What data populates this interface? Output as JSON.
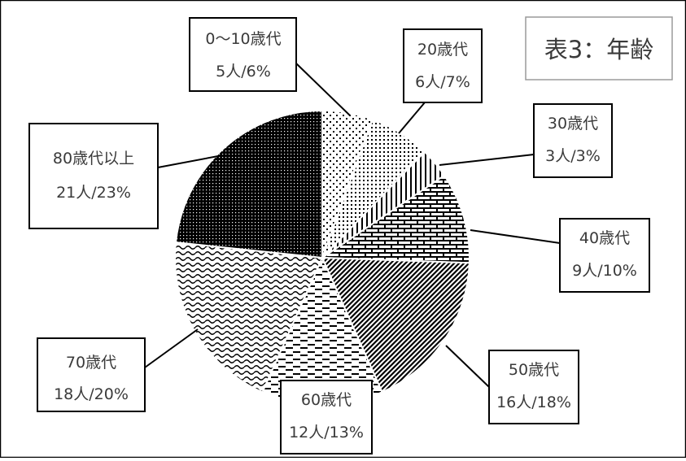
{
  "chart_data": {
    "type": "pie",
    "title": "表3：年齢",
    "slices": [
      {
        "label": "0〜10歳代",
        "count": "5人",
        "percent": "6%",
        "value": 5,
        "pct": 6,
        "pattern": "dots-sparse"
      },
      {
        "label": "20歳代",
        "count": "6人",
        "percent": "7%",
        "value": 6,
        "pct": 7,
        "pattern": "dots-medium"
      },
      {
        "label": "30歳代",
        "count": "3人",
        "percent": "3%",
        "value": 3,
        "pct": 3,
        "pattern": "vertical-lines"
      },
      {
        "label": "40歳代",
        "count": "9人",
        "percent": "10%",
        "value": 9,
        "pct": 10,
        "pattern": "brick"
      },
      {
        "label": "50歳代",
        "count": "16人",
        "percent": "18%",
        "value": 16,
        "pct": 18,
        "pattern": "diagonal"
      },
      {
        "label": "60歳代",
        "count": "12人",
        "percent": "13%",
        "value": 12,
        "pct": 13,
        "pattern": "dashes"
      },
      {
        "label": "70歳代",
        "count": "18人",
        "percent": "20%",
        "value": 18,
        "pct": 20,
        "pattern": "waves"
      },
      {
        "label": "80歳代以上",
        "count": "21人",
        "percent": "23%",
        "value": 21,
        "pct": 23,
        "pattern": "dots-dense"
      }
    ],
    "separator": "/",
    "legend": "none",
    "grid": false
  }
}
